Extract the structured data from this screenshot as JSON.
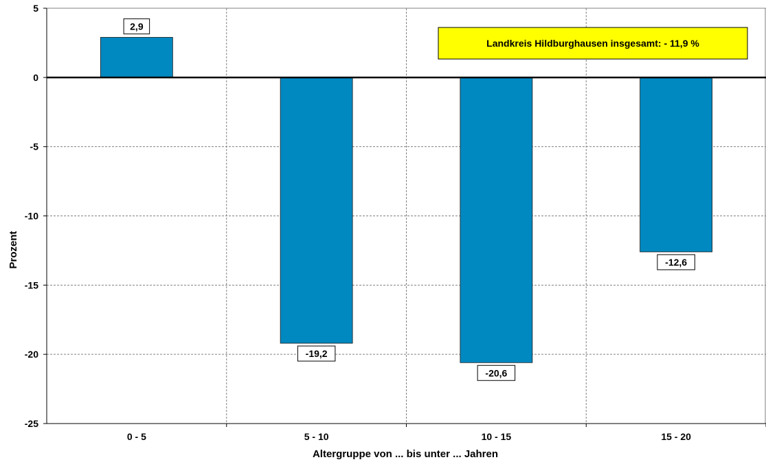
{
  "chart_data": {
    "type": "bar",
    "title": "",
    "xlabel": "Altergruppe von ... bis unter ... Jahren",
    "ylabel": "Prozent",
    "categories": [
      "0 - 5",
      "5 - 10",
      "10 - 15",
      "15 - 20"
    ],
    "values": [
      2.9,
      -19.2,
      -20.6,
      -12.6
    ],
    "value_labels": [
      "2,9",
      "-19,2",
      "-20,6",
      "-12,6"
    ],
    "ylim": [
      -25,
      5
    ],
    "yticks": [
      5,
      0,
      -5,
      -10,
      -15,
      -20,
      -25
    ],
    "grid": true,
    "annotation": "Landkreis Hildburghausen insgesamt: - 11,9 %",
    "colors": {
      "bar": "#0088C0",
      "annotation_bg": "#FFFF00",
      "grid": "#808080",
      "zero_line": "#000000"
    }
  }
}
